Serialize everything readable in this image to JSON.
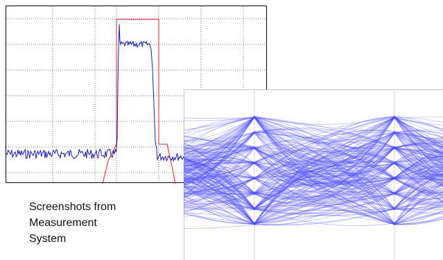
{
  "caption": {
    "lines": [
      "Screenshots from",
      "Measurement",
      "System"
    ]
  },
  "spectrum_plot": {
    "trace_color": "#1a1aa8",
    "mask_color": "#e02020",
    "grid": "dotted",
    "spine_color": "#000000"
  },
  "eye_diagram": {
    "trace_color": "#4a4aff",
    "background": "#ffffff",
    "levels": 8,
    "crossings": 2
  }
}
